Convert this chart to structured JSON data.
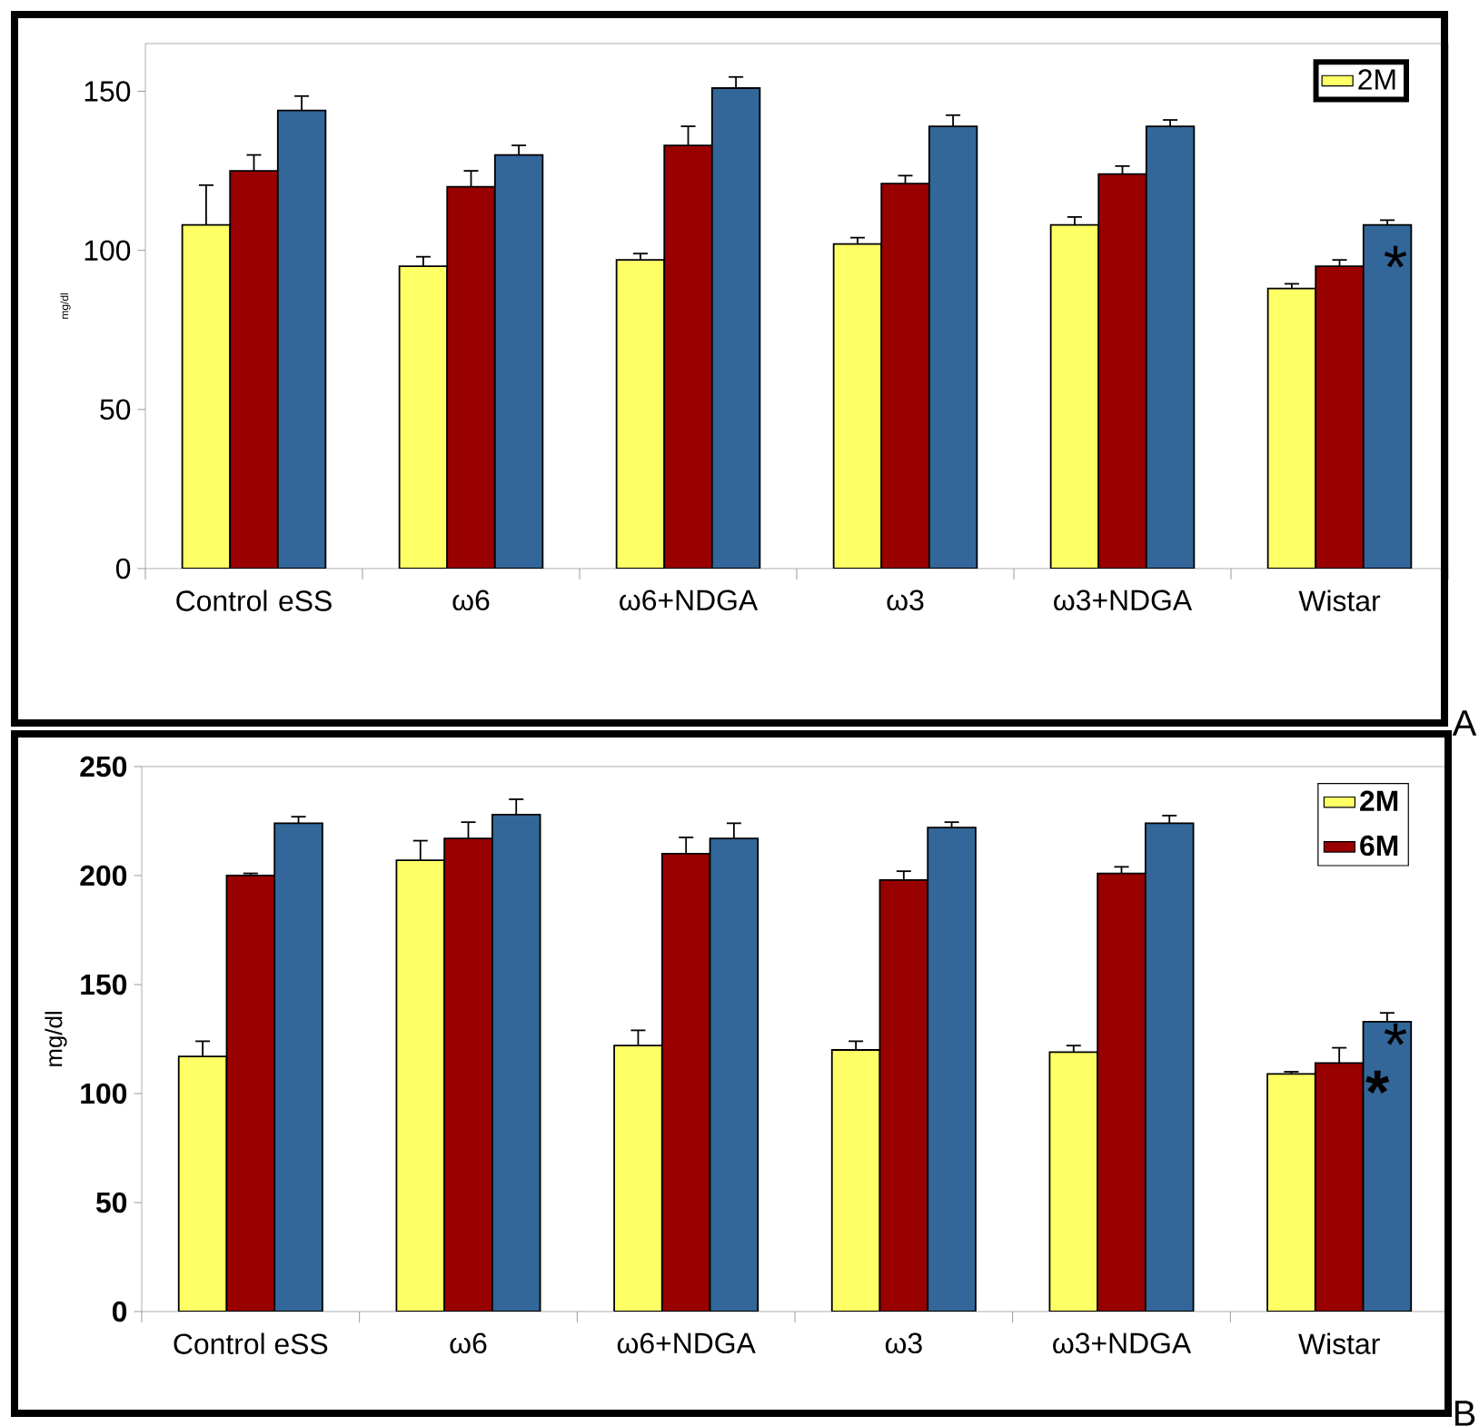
{
  "chart_data": [
    {
      "type": "bar",
      "categories": [
        "Control eSS",
        "ω6",
        "ω6+NDGA",
        "ω3",
        "ω3+NDGA",
        "Wistar"
      ],
      "ylabel": "mg/dl",
      "ylim": [
        0,
        165
      ],
      "yticks": [
        0,
        50,
        100,
        150
      ],
      "legend": "top right",
      "series": [
        {
          "name": "2M",
          "color": "#ffff66",
          "values": [
            108,
            95,
            97,
            102,
            108,
            88
          ],
          "errors": [
            [
              108,
              120.5
            ],
            [
              95,
              98
            ],
            [
              97,
              99
            ],
            [
              102,
              104
            ],
            [
              108,
              110.5
            ],
            [
              88,
              89.5
            ]
          ]
        },
        {
          "color": "#990000",
          "values": [
            125,
            120,
            133,
            121,
            124,
            95
          ],
          "errors": [
            [
              125,
              130
            ],
            [
              120,
              125
            ],
            [
              133,
              139
            ],
            [
              121,
              123.5
            ],
            [
              124,
              126.5
            ],
            [
              95,
              97
            ]
          ]
        },
        {
          "color": "#336699",
          "values": [
            144,
            130,
            151,
            139,
            139,
            108
          ],
          "errors": [
            [
              144,
              148.5
            ],
            [
              130,
              133
            ],
            [
              151,
              154.5
            ],
            [
              139,
              142.5
            ],
            [
              139,
              141
            ],
            [
              108,
              109.5
            ]
          ]
        }
      ],
      "annotations": [
        "*",
        "A"
      ]
    },
    {
      "type": "bar",
      "categories": [
        "Control eSS",
        "ω6",
        "ω6+NDGA",
        "ω3",
        "ω3+NDGA",
        "Wistar"
      ],
      "ylabel": "mg/dl",
      "ylim": [
        0,
        250
      ],
      "yticks": [
        0,
        50,
        100,
        150,
        200,
        250
      ],
      "legend": "top right",
      "series": [
        {
          "name": "2M",
          "color": "#ffff66",
          "values": [
            117,
            207,
            122,
            120,
            119,
            109
          ],
          "errors": [
            [
              117,
              124
            ],
            [
              207,
              216
            ],
            [
              122,
              129
            ],
            [
              120,
              124
            ],
            [
              119,
              122
            ],
            [
              109,
              110
            ]
          ]
        },
        {
          "name": "6M",
          "color": "#990000",
          "values": [
            200,
            217,
            210,
            198,
            201,
            114
          ],
          "errors": [
            [
              200,
              201
            ],
            [
              217,
              224.5
            ],
            [
              210,
              217.5
            ],
            [
              198,
              202
            ],
            [
              201,
              204
            ],
            [
              114,
              121
            ]
          ]
        },
        {
          "color": "#336699",
          "values": [
            224,
            228,
            217,
            222,
            224,
            133
          ],
          "errors": [
            [
              224,
              227
            ],
            [
              228,
              235
            ],
            [
              217,
              224
            ],
            [
              222,
              224.5
            ],
            [
              224,
              227.5
            ],
            [
              133,
              137
            ]
          ]
        }
      ],
      "annotations": [
        {
          "text": "*",
          "x": "Wistar",
          "y": 114
        },
        "*",
        "B"
      ]
    }
  ]
}
